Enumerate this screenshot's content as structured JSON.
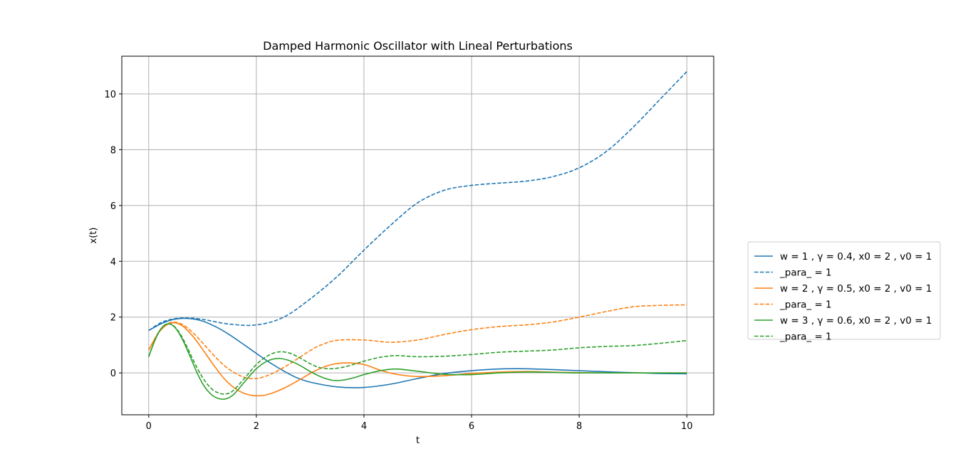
{
  "chart_data": {
    "type": "line",
    "title": "Damped Harmonic Oscillator with Lineal Perturbations",
    "xlabel": "t",
    "ylabel": "x(t)",
    "xlim": [
      -0.5,
      10.5
    ],
    "ylim": [
      -1.5,
      11.35
    ],
    "xticks": [
      0,
      2,
      4,
      6,
      8,
      10
    ],
    "yticks": [
      0,
      2,
      4,
      6,
      8,
      10
    ],
    "grid": true,
    "legend_position": "right-outside",
    "series": [
      {
        "name": "w = 1 , γ = 0.4, x0 = 2 , v0 = 1",
        "color": "#1f77b4",
        "style": "solid",
        "x": [
          0,
          0.25,
          0.5,
          0.75,
          1,
          1.25,
          1.5,
          1.75,
          2,
          2.25,
          2.5,
          2.75,
          3,
          3.5,
          4,
          4.5,
          5,
          5.5,
          6,
          6.5,
          7,
          7.5,
          8,
          8.5,
          9,
          9.5,
          10
        ],
        "y": [
          1.52,
          1.78,
          1.93,
          1.95,
          1.86,
          1.65,
          1.37,
          1.04,
          0.7,
          0.37,
          0.08,
          -0.17,
          -0.33,
          -0.5,
          -0.52,
          -0.4,
          -0.2,
          -0.02,
          0.08,
          0.14,
          0.15,
          0.12,
          0.08,
          0.04,
          0.01,
          -0.02,
          -0.03
        ]
      },
      {
        "name": "_para_ = 1",
        "color": "#1f77b4",
        "style": "dashed",
        "x": [
          0,
          0.25,
          0.5,
          0.75,
          1,
          1.5,
          2,
          2.5,
          3,
          3.5,
          4,
          4.5,
          5,
          5.5,
          6,
          6.5,
          7,
          7.5,
          8,
          8.5,
          9,
          9.5,
          10
        ],
        "y": [
          1.52,
          1.82,
          1.95,
          1.97,
          1.92,
          1.75,
          1.72,
          1.99,
          2.65,
          3.45,
          4.4,
          5.3,
          6.1,
          6.55,
          6.72,
          6.8,
          6.87,
          7.03,
          7.35,
          7.93,
          8.8,
          9.8,
          10.8
        ]
      },
      {
        "name": "w = 2 , γ = 0.5, x0 = 2 , v0 = 1",
        "color": "#ff7f0e",
        "style": "solid",
        "x": [
          0,
          0.2,
          0.4,
          0.6,
          0.8,
          1,
          1.2,
          1.4,
          1.6,
          1.8,
          2,
          2.2,
          2.5,
          2.8,
          3.1,
          3.4,
          3.7,
          4,
          4.3,
          4.6,
          5,
          5.5,
          6,
          6.5,
          7,
          7.5,
          8,
          8.5,
          9,
          9.5,
          10
        ],
        "y": [
          0.82,
          1.48,
          1.78,
          1.72,
          1.36,
          0.85,
          0.3,
          -0.2,
          -0.55,
          -0.75,
          -0.82,
          -0.78,
          -0.56,
          -0.25,
          0.08,
          0.3,
          0.36,
          0.3,
          0.1,
          -0.05,
          -0.13,
          -0.1,
          -0.02,
          0.03,
          0.05,
          0.03,
          0.01,
          0,
          0,
          0,
          0
        ]
      },
      {
        "name": "_para_ = 1",
        "color": "#ff7f0e",
        "style": "dashed",
        "x": [
          0,
          0.2,
          0.4,
          0.6,
          0.8,
          1,
          1.2,
          1.4,
          1.6,
          1.8,
          2,
          2.2,
          2.4,
          2.6,
          2.8,
          3,
          3.2,
          3.5,
          4,
          4.5,
          5,
          5.5,
          6,
          6.5,
          7,
          7.5,
          8,
          8.5,
          9,
          9.5,
          10
        ],
        "y": [
          0.82,
          1.5,
          1.8,
          1.76,
          1.48,
          1.08,
          0.65,
          0.27,
          0.0,
          -0.17,
          -0.2,
          -0.1,
          0.08,
          0.3,
          0.55,
          0.8,
          1.0,
          1.17,
          1.18,
          1.1,
          1.18,
          1.38,
          1.55,
          1.66,
          1.72,
          1.82,
          2.0,
          2.2,
          2.37,
          2.42,
          2.44
        ]
      },
      {
        "name": "w = 3 , γ = 0.6, x0 = 2 , v0 = 1",
        "color": "#2ca02c",
        "style": "solid",
        "x": [
          0,
          0.1,
          0.2,
          0.3,
          0.4,
          0.5,
          0.6,
          0.7,
          0.8,
          0.9,
          1,
          1.1,
          1.2,
          1.3,
          1.4,
          1.5,
          1.6,
          1.8,
          2,
          2.2,
          2.4,
          2.6,
          2.8,
          3,
          3.2,
          3.4,
          3.6,
          3.8,
          4,
          4.3,
          4.6,
          5,
          5.5,
          6,
          6.5,
          7,
          7.5,
          8,
          9,
          10
        ],
        "y": [
          0.58,
          1.1,
          1.5,
          1.72,
          1.75,
          1.6,
          1.3,
          0.9,
          0.45,
          0.0,
          -0.38,
          -0.65,
          -0.83,
          -0.92,
          -0.94,
          -0.88,
          -0.73,
          -0.28,
          0.15,
          0.42,
          0.52,
          0.45,
          0.28,
          0.05,
          -0.14,
          -0.26,
          -0.26,
          -0.18,
          -0.06,
          0.08,
          0.14,
          0.06,
          -0.05,
          -0.06,
          0.0,
          0.03,
          0.02,
          0.0,
          0,
          0
        ]
      },
      {
        "name": "_para_ = 1",
        "color": "#2ca02c",
        "style": "dashed",
        "x": [
          0,
          0.1,
          0.2,
          0.3,
          0.4,
          0.5,
          0.6,
          0.7,
          0.8,
          0.9,
          1,
          1.1,
          1.2,
          1.3,
          1.4,
          1.5,
          1.6,
          1.8,
          2,
          2.2,
          2.4,
          2.6,
          2.8,
          3,
          3.2,
          3.4,
          3.6,
          3.8,
          4,
          4.3,
          4.6,
          5,
          5.5,
          6,
          6.5,
          7,
          7.5,
          8,
          8.5,
          9,
          9.5,
          10
        ],
        "y": [
          0.58,
          1.1,
          1.5,
          1.72,
          1.75,
          1.62,
          1.35,
          0.98,
          0.57,
          0.18,
          -0.16,
          -0.43,
          -0.62,
          -0.72,
          -0.76,
          -0.72,
          -0.58,
          -0.15,
          0.3,
          0.6,
          0.75,
          0.72,
          0.55,
          0.33,
          0.18,
          0.15,
          0.2,
          0.3,
          0.42,
          0.56,
          0.62,
          0.58,
          0.6,
          0.66,
          0.74,
          0.78,
          0.82,
          0.9,
          0.95,
          0.98,
          1.06,
          1.16
        ]
      }
    ]
  }
}
